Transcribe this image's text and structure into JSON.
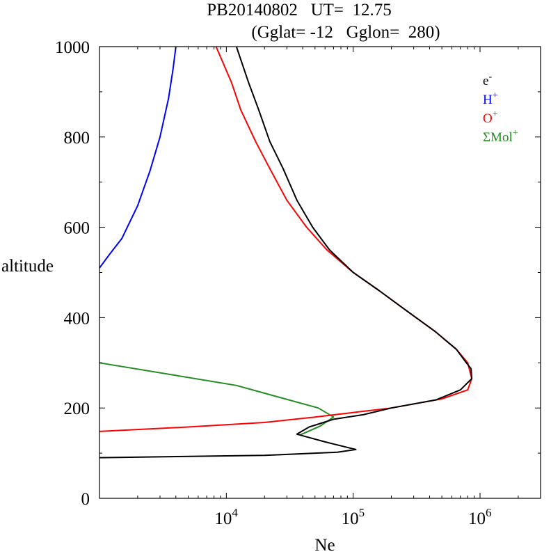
{
  "chart_data": {
    "type": "line",
    "title_line1": "PB20140802   UT=  12.75",
    "title_line2": "(Gglat= -12   Gglon=  280)",
    "xlabel": "Ne",
    "ylabel": "altitude",
    "x_scale": "log",
    "xlim": [
      1000,
      3000000
    ],
    "ylim": [
      0,
      1000
    ],
    "x_ticks": [
      {
        "base": "10",
        "exp": "4",
        "value": 10000
      },
      {
        "base": "10",
        "exp": "5",
        "value": 100000
      },
      {
        "base": "10",
        "exp": "6",
        "value": 1000000
      }
    ],
    "y_ticks": [
      {
        "label": "0",
        "value": 0
      },
      {
        "label": "200",
        "value": 200
      },
      {
        "label": "400",
        "value": 400
      },
      {
        "label": "600",
        "value": 600
      },
      {
        "label": "800",
        "value": 800
      },
      {
        "label": "1000",
        "value": 1000
      }
    ],
    "grid": false,
    "legend_position": "top-right",
    "legend": [
      {
        "base": "e",
        "sup": "-",
        "color": "#000000"
      },
      {
        "base": "H",
        "sup": "+",
        "color": "#0000ff"
      },
      {
        "base": "O",
        "sup": "+",
        "color": "#ff0000"
      },
      {
        "base": "ΣMol",
        "sup": "+",
        "color": "#228b22"
      }
    ],
    "series": [
      {
        "key": "sum-mol-ion",
        "color": "#228b22",
        "points": [
          [
            1000,
            300
          ],
          [
            12000,
            250
          ],
          [
            53000,
            200
          ],
          [
            70000,
            180
          ],
          [
            55000,
            160
          ],
          [
            38000,
            140
          ]
        ]
      },
      {
        "key": "h-ion",
        "color": "#0000ff",
        "points": [
          [
            1000,
            510
          ],
          [
            1200,
            540
          ],
          [
            1500,
            575
          ],
          [
            2000,
            648
          ],
          [
            2500,
            725
          ],
          [
            3000,
            800
          ],
          [
            3500,
            885
          ],
          [
            3800,
            950
          ],
          [
            4000,
            1000
          ]
        ]
      },
      {
        "key": "o-ion",
        "color": "#ff0000",
        "points": [
          [
            1000,
            148
          ],
          [
            5000,
            158
          ],
          [
            20000,
            168
          ],
          [
            50000,
            180
          ],
          [
            100000,
            190
          ],
          [
            200000,
            200
          ],
          [
            500000,
            220
          ],
          [
            800000,
            240
          ],
          [
            860000,
            265
          ],
          [
            800000,
            300
          ],
          [
            650000,
            330
          ],
          [
            440000,
            370
          ],
          [
            250000,
            420
          ],
          [
            160000,
            460
          ],
          [
            100000,
            500
          ],
          [
            62000,
            550
          ],
          [
            43000,
            600
          ],
          [
            30000,
            660
          ],
          [
            22000,
            730
          ],
          [
            17000,
            790
          ],
          [
            13000,
            860
          ],
          [
            11000,
            920
          ],
          [
            8300,
            1000
          ]
        ]
      },
      {
        "key": "electron",
        "color": "#000000",
        "points": [
          [
            1000,
            90
          ],
          [
            20000,
            95
          ],
          [
            75000,
            102
          ],
          [
            105000,
            108
          ],
          [
            60000,
            125
          ],
          [
            43000,
            136
          ],
          [
            36000,
            142
          ],
          [
            45000,
            158
          ],
          [
            70000,
            175
          ],
          [
            120000,
            185
          ],
          [
            200000,
            200
          ],
          [
            450000,
            218
          ],
          [
            700000,
            240
          ],
          [
            860000,
            265
          ],
          [
            850000,
            287
          ],
          [
            780000,
            300
          ],
          [
            650000,
            330
          ],
          [
            440000,
            370
          ],
          [
            250000,
            420
          ],
          [
            160000,
            460
          ],
          [
            100000,
            500
          ],
          [
            65000,
            550
          ],
          [
            48000,
            600
          ],
          [
            36000,
            660
          ],
          [
            28000,
            730
          ],
          [
            22000,
            790
          ],
          [
            18000,
            860
          ],
          [
            15000,
            920
          ],
          [
            12000,
            1000
          ]
        ]
      }
    ]
  }
}
